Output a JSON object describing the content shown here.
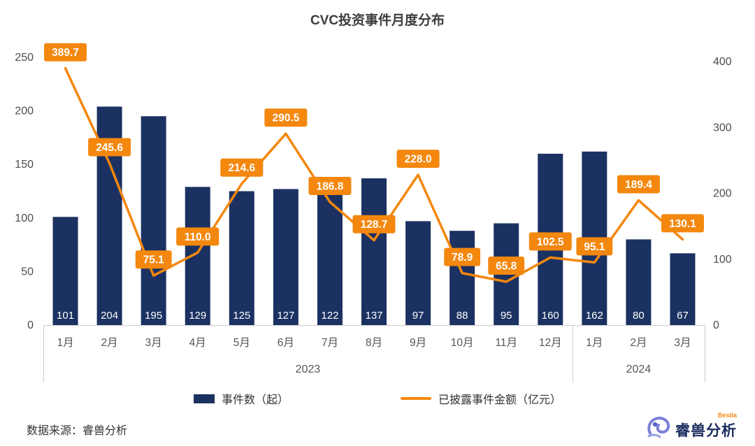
{
  "title": "CVC投资事件月度分布",
  "chart_data": {
    "type": "combo",
    "categories": [
      "1月",
      "2月",
      "3月",
      "4月",
      "5月",
      "6月",
      "7月",
      "8月",
      "9月",
      "10月",
      "11月",
      "12月",
      "1月",
      "2月",
      "3月"
    ],
    "year_groups": [
      {
        "label": "2023",
        "from": 0,
        "to": 11
      },
      {
        "label": "2024",
        "from": 12,
        "to": 14
      }
    ],
    "series": [
      {
        "name": "事件数（起）",
        "type": "bar",
        "axis": "left",
        "color": "#1b3161",
        "values": [
          101,
          204,
          195,
          129,
          125,
          127,
          122,
          137,
          97,
          88,
          95,
          160,
          162,
          80,
          67
        ]
      },
      {
        "name": "已披露事件金额（亿元）",
        "type": "line",
        "axis": "right",
        "color": "#f4870e",
        "values": [
          389.7,
          245.6,
          75.1,
          110.0,
          214.6,
          290.5,
          186.8,
          128.7,
          228.0,
          78.9,
          65.8,
          102.5,
          95.1,
          189.4,
          130.1
        ]
      }
    ],
    "left_axis": {
      "ticks": [
        0,
        50,
        100,
        150,
        200,
        250
      ],
      "ylim": [
        0,
        250
      ]
    },
    "right_axis": {
      "ticks": [
        0,
        100,
        200,
        300,
        400
      ],
      "ylim": [
        0,
        400
      ]
    },
    "grid": false,
    "legend_position": "bottom"
  },
  "footer": {
    "source": "数据来源：睿兽分析"
  },
  "logo": {
    "name": "睿兽分析",
    "tag": "Bestla"
  },
  "colors": {
    "bar": "#1b3161",
    "line": "#f4870e",
    "label_box": "#f4870e",
    "axis_text": "#4d4d4d"
  }
}
